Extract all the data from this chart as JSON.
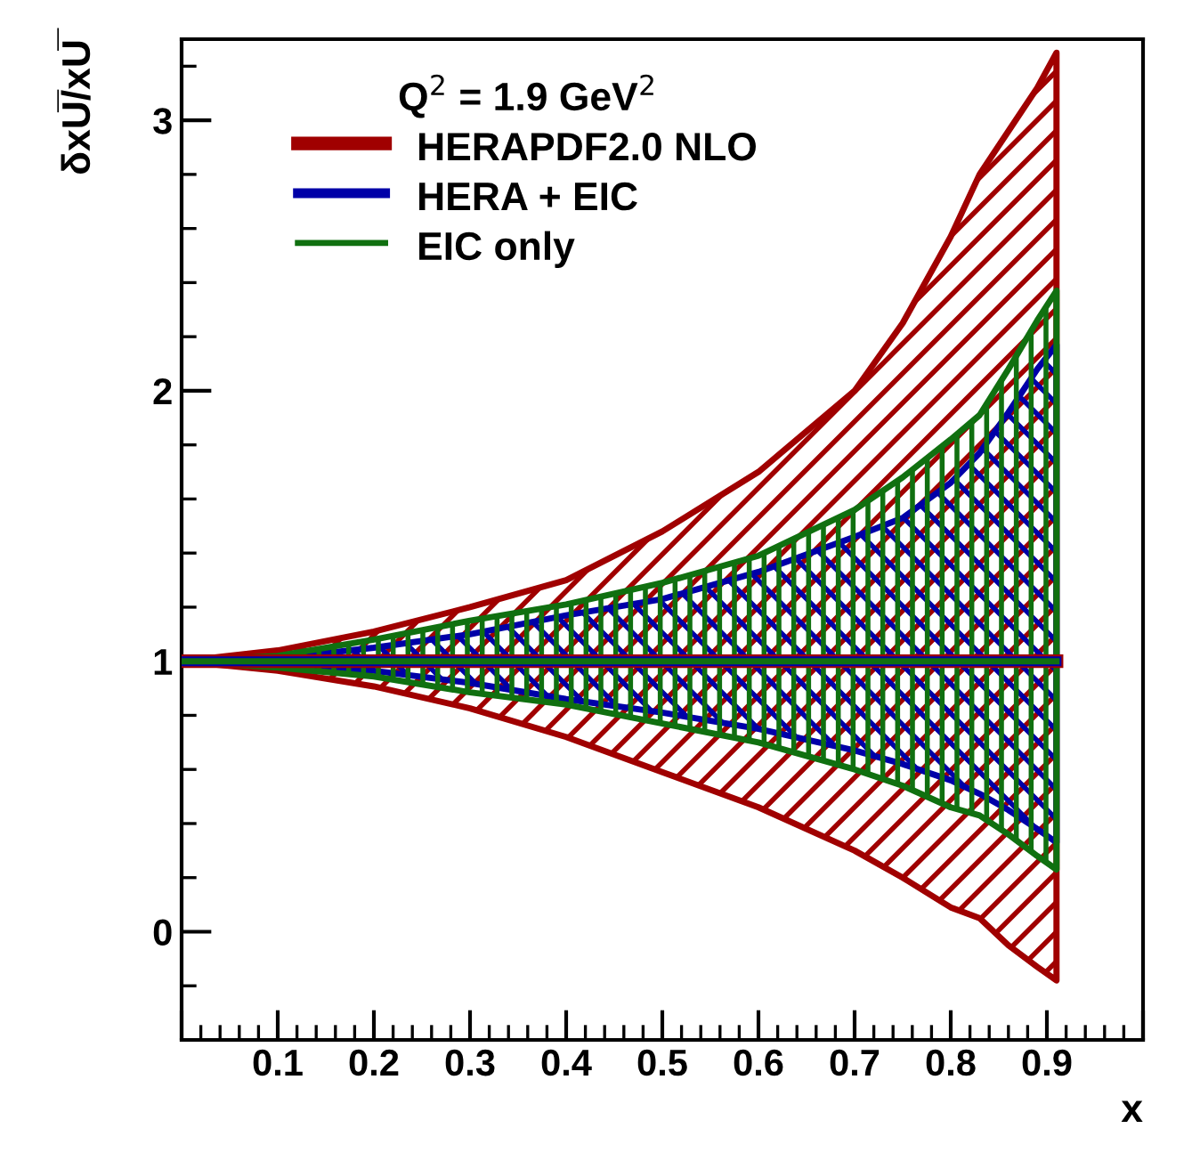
{
  "chart_data": {
    "type": "line",
    "xlabel": "x",
    "ylabel": "δxU̅/xU̅",
    "legend_title": "Q$^{2}$ = 1.9 GeV$^{2}$",
    "x": [
      0,
      0.1,
      0.2,
      0.3,
      0.4,
      0.5,
      0.6,
      0.7,
      0.75,
      0.8,
      0.83,
      0.86,
      0.89,
      0.91
    ],
    "series": [
      {
        "name": "HERAPDF2.0 NLO",
        "color": "#a00000",
        "values": [
          1,
          1,
          1,
          1,
          1,
          1,
          1,
          1,
          1,
          1,
          1,
          1,
          1,
          1
        ],
        "lower": [
          1,
          0.965,
          0.907,
          0.826,
          0.72,
          0.59,
          0.46,
          0.3,
          0.2,
          0.09,
          0.05,
          -0.05,
          -0.13,
          -0.18
        ],
        "upper": [
          1,
          1.04,
          1.11,
          1.2,
          1.3,
          1.48,
          1.7,
          2.0,
          2.25,
          2.57,
          2.8,
          2.96,
          3.12,
          3.25
        ]
      },
      {
        "name": "HERA + EIC",
        "color": "#0000a8",
        "values": [
          1,
          1,
          1,
          1,
          1,
          1,
          1,
          1,
          1,
          1,
          1,
          1,
          1,
          1
        ],
        "lower": [
          1,
          0.985,
          0.965,
          0.92,
          0.86,
          0.81,
          0.75,
          0.67,
          0.62,
          0.56,
          0.51,
          0.45,
          0.38,
          0.33
        ],
        "upper": [
          1,
          1.01,
          1.05,
          1.1,
          1.17,
          1.23,
          1.33,
          1.46,
          1.53,
          1.66,
          1.77,
          1.92,
          2.08,
          2.17
        ]
      },
      {
        "name": "EIC only",
        "color": "#107010",
        "values": [
          1,
          1,
          1,
          1,
          1,
          1,
          1,
          1,
          1,
          1,
          1,
          1,
          1,
          1
        ],
        "lower": [
          1,
          0.977,
          0.944,
          0.885,
          0.84,
          0.77,
          0.7,
          0.6,
          0.54,
          0.46,
          0.43,
          0.36,
          0.28,
          0.23
        ],
        "upper": [
          1,
          1.02,
          1.08,
          1.15,
          1.21,
          1.29,
          1.39,
          1.56,
          1.68,
          1.82,
          1.91,
          2.08,
          2.26,
          2.37
        ]
      }
    ],
    "xlim": [
      0,
      1
    ],
    "xticks": [
      {
        "value": 0,
        "label": null
      },
      0.1,
      0.2,
      0.3,
      0.4,
      0.5,
      0.6,
      0.7,
      0.8,
      0.9,
      {
        "value": 1,
        "label": null
      }
    ],
    "ylim": [
      -0.4,
      3.3
    ],
    "yticks": [
      0,
      1,
      2,
      3
    ],
    "grid": false,
    "legend": "top"
  }
}
